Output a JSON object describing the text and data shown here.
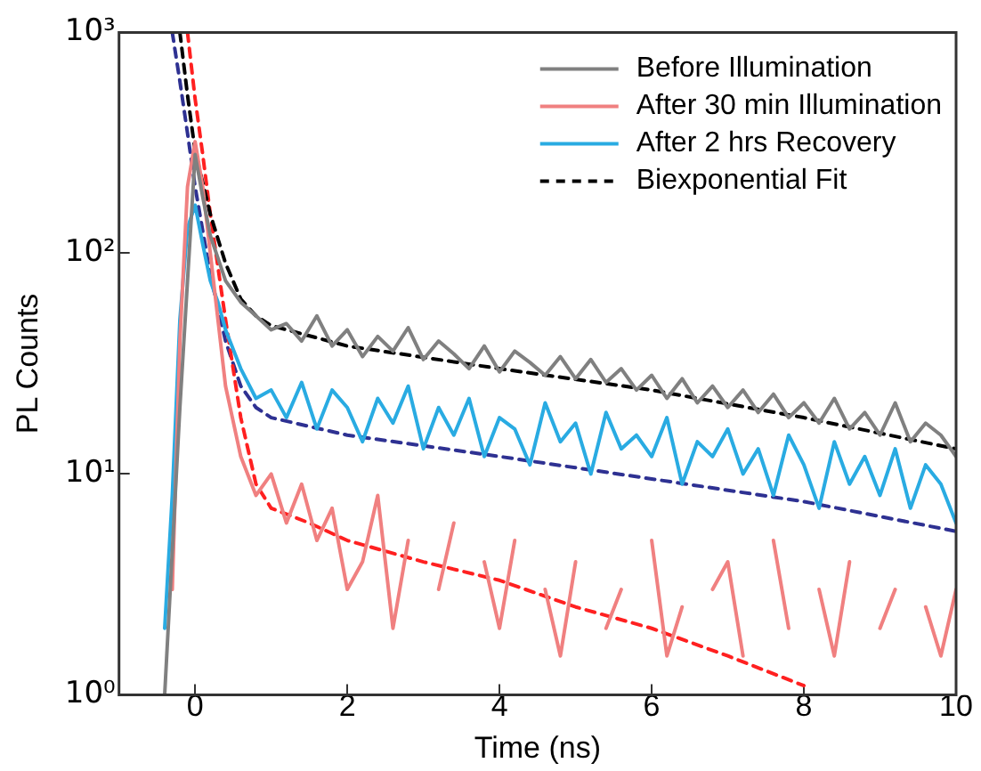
{
  "chart_data": {
    "type": "line",
    "xlabel": "Time (ns)",
    "ylabel": "PL Counts",
    "log": "y",
    "xlim": [
      -1,
      10
    ],
    "xticks": [
      0,
      2,
      4,
      6,
      8,
      10
    ],
    "ylim": [
      1,
      1000
    ],
    "yticks": [
      {
        "value": 1,
        "label": "10⁰"
      },
      {
        "value": 10,
        "label": "10¹"
      },
      {
        "value": 100,
        "label": "10²"
      },
      {
        "value": 1000,
        "label": "10³"
      }
    ],
    "legend": "top right",
    "marker": "none",
    "grid": false,
    "series": [
      {
        "name": "Before Illumination",
        "color": "#808080",
        "x": [
          -0.4,
          -0.2,
          0,
          0.1,
          0.2,
          0.3,
          0.4,
          0.6,
          0.8,
          1.0,
          1.2,
          1.4,
          1.6,
          1.8,
          2.0,
          2.2,
          2.4,
          2.6,
          2.8,
          3.0,
          3.2,
          3.4,
          3.6,
          3.8,
          4.0,
          4.2,
          4.4,
          4.6,
          4.8,
          5.0,
          5.2,
          5.4,
          5.6,
          5.8,
          6.0,
          6.2,
          6.4,
          6.6,
          6.8,
          7.0,
          7.2,
          7.4,
          7.6,
          7.8,
          8.0,
          8.2,
          8.4,
          8.6,
          8.8,
          9.0,
          9.2,
          9.4,
          9.6,
          9.8,
          10.0
        ],
        "values": [
          1,
          20,
          280,
          180,
          120,
          95,
          75,
          60,
          52,
          45,
          48,
          40,
          52,
          38,
          45,
          34,
          42,
          36,
          46,
          33,
          40,
          35,
          30,
          38,
          29,
          36,
          32,
          28,
          34,
          27,
          33,
          26,
          30,
          24,
          28,
          22,
          27,
          21,
          25,
          20,
          24,
          19,
          23,
          18,
          21,
          17,
          22,
          16,
          19,
          15,
          21,
          14,
          17,
          15,
          12
        ]
      },
      {
        "name": "After 30 min Illumination",
        "color": "#f08080",
        "x": [
          -0.3,
          -0.2,
          -0.1,
          0,
          0.1,
          0.2,
          0.3,
          0.4,
          0.6,
          0.8,
          1.0,
          1.2,
          1.4,
          1.6,
          1.8,
          2.0,
          2.2,
          2.4,
          2.6,
          2.8,
          3.0,
          3.2,
          3.4,
          3.6,
          3.8,
          4.0,
          4.2,
          4.4,
          4.6,
          4.8,
          5.0,
          5.2,
          5.4,
          5.6,
          5.8,
          6.0,
          6.2,
          6.4,
          6.6,
          6.8,
          7.0,
          7.2,
          7.4,
          7.6,
          7.8,
          8.0,
          8.2,
          8.4,
          8.6,
          8.8,
          9.0,
          9.2,
          9.4,
          9.6,
          9.8,
          10.0
        ],
        "values": [
          3,
          40,
          200,
          320,
          200,
          100,
          50,
          25,
          12,
          8,
          10,
          6,
          9,
          5,
          7,
          3,
          4,
          8,
          2,
          5,
          null,
          3,
          6,
          null,
          4,
          2,
          5,
          null,
          3,
          1.5,
          4,
          null,
          2,
          3,
          null,
          5,
          1.5,
          2.5,
          null,
          3,
          4,
          1.5,
          null,
          5,
          2,
          null,
          3,
          1.5,
          4,
          null,
          2,
          3,
          null,
          2.5,
          1.5,
          3
        ]
      },
      {
        "name": "After 2 hrs Recovery",
        "color": "#29abe2",
        "x": [
          -0.4,
          -0.3,
          -0.2,
          -0.1,
          0,
          0.1,
          0.2,
          0.3,
          0.4,
          0.6,
          0.8,
          1.0,
          1.2,
          1.4,
          1.6,
          1.8,
          2.0,
          2.2,
          2.4,
          2.6,
          2.8,
          3.0,
          3.2,
          3.4,
          3.6,
          3.8,
          4.0,
          4.2,
          4.4,
          4.6,
          4.8,
          5.0,
          5.2,
          5.4,
          5.6,
          5.8,
          6.0,
          6.2,
          6.4,
          6.6,
          6.8,
          7.0,
          7.2,
          7.4,
          7.6,
          7.8,
          8.0,
          8.2,
          8.4,
          8.6,
          8.8,
          9.0,
          9.2,
          9.4,
          9.6,
          9.8,
          10.0
        ],
        "values": [
          2,
          8,
          50,
          130,
          165,
          110,
          75,
          60,
          45,
          30,
          22,
          24,
          18,
          26,
          16,
          24,
          20,
          14,
          22,
          17,
          25,
          13,
          20,
          15,
          22,
          12,
          18,
          16,
          11,
          21,
          14,
          17,
          10,
          19,
          13,
          15,
          12,
          18,
          9,
          14,
          12,
          16,
          10,
          13,
          8,
          15,
          11,
          7,
          14,
          9,
          12,
          8,
          13,
          7,
          11,
          9,
          6
        ]
      },
      {
        "name": "Biexponential Fit",
        "color": "#000000",
        "line_style": "dashed",
        "x": [
          -0.2,
          -0.1,
          0,
          0.2,
          0.4,
          0.6,
          0.8,
          1,
          2,
          4,
          6,
          8,
          10
        ],
        "values": [
          1000,
          520,
          290,
          150,
          90,
          62,
          52,
          47,
          38,
          30,
          24,
          18,
          13
        ]
      },
      {
        "color": "#ff2020",
        "line_style": "dashed",
        "x": [
          -0.1,
          0,
          0.1,
          0.2,
          0.4,
          0.6,
          0.8,
          1,
          1.5,
          2,
          3,
          4,
          5,
          6,
          7,
          8
        ],
        "values": [
          1000,
          500,
          280,
          150,
          50,
          18,
          9,
          7,
          6,
          5,
          4,
          3.3,
          2.5,
          2,
          1.5,
          1.1
        ]
      },
      {
        "color": "#2e3192",
        "line_style": "dashed",
        "x": [
          -0.3,
          -0.2,
          -0.1,
          0,
          0.2,
          0.4,
          0.6,
          0.8,
          1,
          2,
          4,
          6,
          8,
          10
        ],
        "values": [
          1000,
          600,
          350,
          200,
          80,
          40,
          25,
          20,
          18,
          15,
          12,
          9.5,
          7.5,
          5.5
        ]
      }
    ]
  }
}
